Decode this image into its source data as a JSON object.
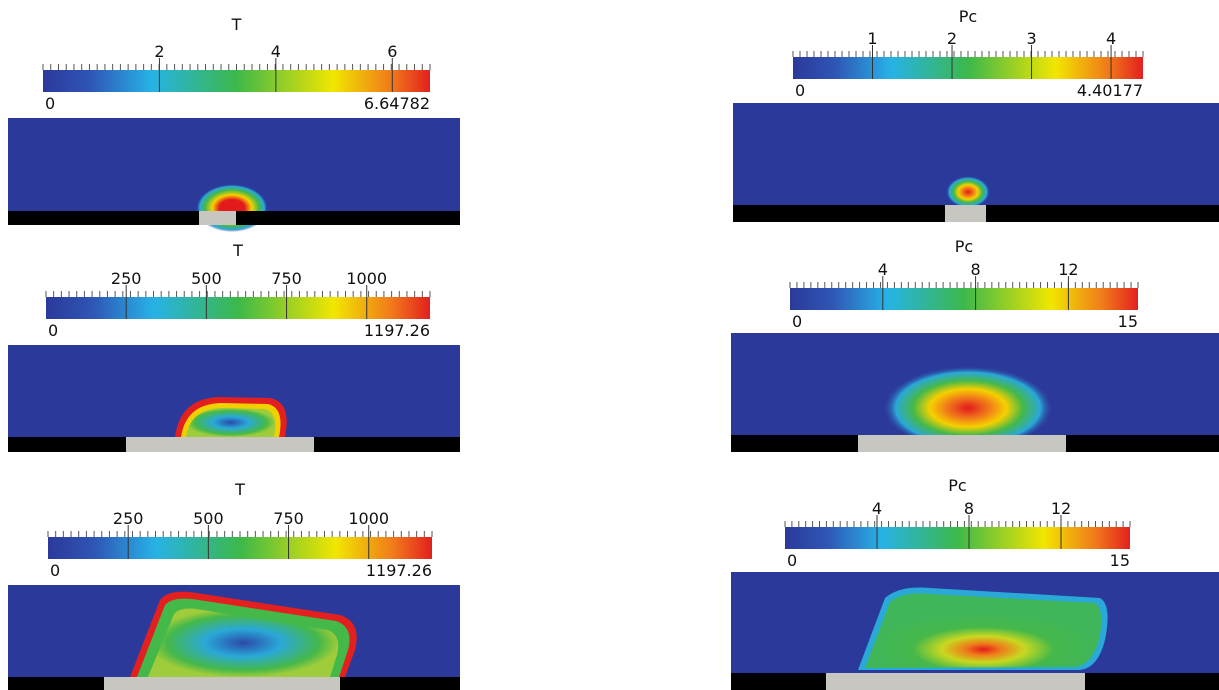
{
  "panels": [
    {
      "title": "T",
      "min": 0,
      "max": 6.64782,
      "ticks": [
        2,
        4,
        6
      ]
    },
    {
      "title": "Pc",
      "min": 0,
      "max": 4.40177,
      "ticks": [
        1,
        2,
        3,
        4
      ]
    },
    {
      "title": "T",
      "min": 0,
      "max": 1197.26,
      "ticks": [
        250,
        500,
        750,
        1000
      ]
    },
    {
      "title": "Pc",
      "min": 0,
      "max": 15,
      "ticks": [
        4,
        8,
        12
      ]
    },
    {
      "title": "T",
      "min": 0,
      "max": 1197.26,
      "ticks": [
        250,
        500,
        750,
        1000
      ]
    },
    {
      "title": "Pc",
      "min": 0,
      "max": 15,
      "ticks": [
        4,
        8,
        12
      ]
    }
  ]
}
